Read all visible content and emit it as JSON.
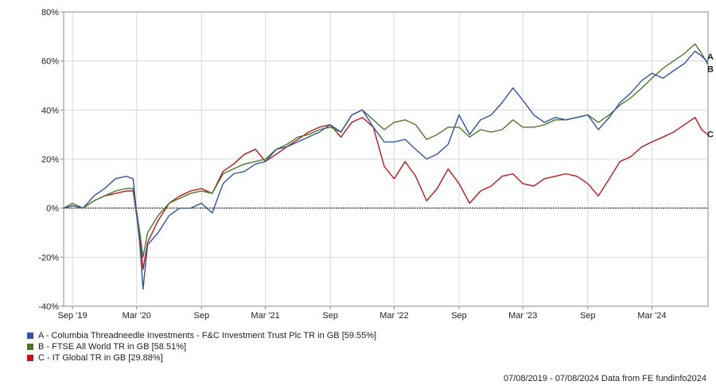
{
  "chart_data": {
    "type": "line",
    "y_axis": {
      "ylim": [
        -40,
        80
      ],
      "ticks": [
        80,
        60,
        40,
        20,
        0,
        -20,
        -40
      ],
      "tick_labels": [
        "80%",
        "60%",
        "40%",
        "20%",
        "0%",
        "-20%",
        "-40%"
      ]
    },
    "x_axis": {
      "xlim": [
        "2019-08-07",
        "2024-08-07"
      ],
      "ticks": [
        "2019-09-01",
        "2020-03-01",
        "2020-09-01",
        "2021-03-01",
        "2021-09-01",
        "2022-03-01",
        "2022-09-01",
        "2023-03-01",
        "2023-09-01",
        "2024-03-01"
      ],
      "tick_labels": [
        "Sep '19",
        "Mar '20",
        "Sep",
        "Mar '21",
        "Sep",
        "Mar '22",
        "Sep",
        "Mar '23",
        "Sep",
        "Mar '24"
      ]
    },
    "grid": true,
    "zero_line": true,
    "series": [
      {
        "key": "A",
        "name": "A - Columbia Threadneedle Investments - F&C Investment Trust Plc TR in GB [59.55%]",
        "end_label": "A",
        "color": "#2f55a4",
        "points": [
          [
            "2019-08-07",
            0
          ],
          [
            "2019-09-01",
            1
          ],
          [
            "2019-10-01",
            0
          ],
          [
            "2019-11-01",
            5
          ],
          [
            "2019-12-01",
            8
          ],
          [
            "2020-01-01",
            12
          ],
          [
            "2020-02-01",
            13
          ],
          [
            "2020-02-20",
            12
          ],
          [
            "2020-03-10",
            -15
          ],
          [
            "2020-03-19",
            -33
          ],
          [
            "2020-04-01",
            -15
          ],
          [
            "2020-05-01",
            -10
          ],
          [
            "2020-06-01",
            -3
          ],
          [
            "2020-07-01",
            0
          ],
          [
            "2020-08-01",
            0
          ],
          [
            "2020-09-01",
            2
          ],
          [
            "2020-10-01",
            -2
          ],
          [
            "2020-11-01",
            10
          ],
          [
            "2020-12-01",
            14
          ],
          [
            "2021-01-01",
            15
          ],
          [
            "2021-02-01",
            18
          ],
          [
            "2021-03-01",
            19
          ],
          [
            "2021-04-01",
            24
          ],
          [
            "2021-05-01",
            25
          ],
          [
            "2021-06-01",
            27
          ],
          [
            "2021-07-01",
            29
          ],
          [
            "2021-08-01",
            31
          ],
          [
            "2021-09-01",
            34
          ],
          [
            "2021-10-01",
            31
          ],
          [
            "2021-11-01",
            38
          ],
          [
            "2021-12-01",
            40
          ],
          [
            "2022-01-01",
            33
          ],
          [
            "2022-02-01",
            27
          ],
          [
            "2022-03-01",
            27
          ],
          [
            "2022-04-01",
            28
          ],
          [
            "2022-05-01",
            24
          ],
          [
            "2022-06-01",
            20
          ],
          [
            "2022-07-01",
            22
          ],
          [
            "2022-08-01",
            26
          ],
          [
            "2022-09-01",
            38
          ],
          [
            "2022-10-01",
            30
          ],
          [
            "2022-11-01",
            36
          ],
          [
            "2022-12-01",
            38
          ],
          [
            "2023-01-01",
            43
          ],
          [
            "2023-02-01",
            49
          ],
          [
            "2023-03-01",
            44
          ],
          [
            "2023-04-01",
            38
          ],
          [
            "2023-05-01",
            35
          ],
          [
            "2023-06-01",
            37
          ],
          [
            "2023-07-01",
            36
          ],
          [
            "2023-08-01",
            37
          ],
          [
            "2023-09-01",
            38
          ],
          [
            "2023-10-01",
            32
          ],
          [
            "2023-11-01",
            37
          ],
          [
            "2023-12-01",
            43
          ],
          [
            "2024-01-01",
            47
          ],
          [
            "2024-02-01",
            52
          ],
          [
            "2024-03-01",
            55
          ],
          [
            "2024-04-01",
            53
          ],
          [
            "2024-05-01",
            56
          ],
          [
            "2024-06-01",
            59
          ],
          [
            "2024-07-01",
            64
          ],
          [
            "2024-07-20",
            62
          ],
          [
            "2024-08-07",
            59.55
          ]
        ]
      },
      {
        "key": "B",
        "name": "B - FTSE All World TR in GB [58.51%]",
        "end_label": "B",
        "color": "#4a7a29",
        "points": [
          [
            "2019-08-07",
            0
          ],
          [
            "2019-09-01",
            2
          ],
          [
            "2019-10-01",
            0
          ],
          [
            "2019-11-01",
            3
          ],
          [
            "2019-12-01",
            5
          ],
          [
            "2020-01-01",
            7
          ],
          [
            "2020-02-01",
            8
          ],
          [
            "2020-02-20",
            8
          ],
          [
            "2020-03-10",
            -10
          ],
          [
            "2020-03-19",
            -20
          ],
          [
            "2020-04-01",
            -10
          ],
          [
            "2020-05-01",
            -3
          ],
          [
            "2020-06-01",
            2
          ],
          [
            "2020-07-01",
            4
          ],
          [
            "2020-08-01",
            6
          ],
          [
            "2020-09-01",
            7
          ],
          [
            "2020-10-01",
            6
          ],
          [
            "2020-11-01",
            14
          ],
          [
            "2020-12-01",
            16
          ],
          [
            "2021-01-01",
            18
          ],
          [
            "2021-02-01",
            19
          ],
          [
            "2021-03-01",
            20
          ],
          [
            "2021-04-01",
            24
          ],
          [
            "2021-05-01",
            26
          ],
          [
            "2021-06-01",
            29
          ],
          [
            "2021-07-01",
            30
          ],
          [
            "2021-08-01",
            32
          ],
          [
            "2021-09-01",
            33
          ],
          [
            "2021-10-01",
            31
          ],
          [
            "2021-11-01",
            38
          ],
          [
            "2021-12-01",
            40
          ],
          [
            "2022-01-01",
            36
          ],
          [
            "2022-02-01",
            32
          ],
          [
            "2022-03-01",
            35
          ],
          [
            "2022-04-01",
            36
          ],
          [
            "2022-05-01",
            34
          ],
          [
            "2022-06-01",
            28
          ],
          [
            "2022-07-01",
            30
          ],
          [
            "2022-08-01",
            33
          ],
          [
            "2022-09-01",
            33
          ],
          [
            "2022-10-01",
            29
          ],
          [
            "2022-11-01",
            32
          ],
          [
            "2022-12-01",
            31
          ],
          [
            "2023-01-01",
            32
          ],
          [
            "2023-02-01",
            36
          ],
          [
            "2023-03-01",
            33
          ],
          [
            "2023-04-01",
            33
          ],
          [
            "2023-05-01",
            34
          ],
          [
            "2023-06-01",
            36
          ],
          [
            "2023-07-01",
            36
          ],
          [
            "2023-08-01",
            37
          ],
          [
            "2023-09-01",
            38
          ],
          [
            "2023-10-01",
            35
          ],
          [
            "2023-11-01",
            38
          ],
          [
            "2023-12-01",
            42
          ],
          [
            "2024-01-01",
            45
          ],
          [
            "2024-02-01",
            49
          ],
          [
            "2024-03-01",
            53
          ],
          [
            "2024-04-01",
            57
          ],
          [
            "2024-05-01",
            60
          ],
          [
            "2024-06-01",
            63
          ],
          [
            "2024-07-01",
            67
          ],
          [
            "2024-07-20",
            63
          ],
          [
            "2024-08-07",
            58.51
          ]
        ]
      },
      {
        "key": "C",
        "name": "C - IT Global TR in GB [29.88%]",
        "end_label": "C",
        "color": "#c0141a",
        "points": [
          [
            "2019-08-07",
            0
          ],
          [
            "2019-09-01",
            1
          ],
          [
            "2019-10-01",
            0
          ],
          [
            "2019-11-01",
            3
          ],
          [
            "2019-12-01",
            5
          ],
          [
            "2020-01-01",
            6
          ],
          [
            "2020-02-01",
            7
          ],
          [
            "2020-02-20",
            7
          ],
          [
            "2020-03-10",
            -12
          ],
          [
            "2020-03-19",
            -25
          ],
          [
            "2020-04-01",
            -14
          ],
          [
            "2020-05-01",
            -5
          ],
          [
            "2020-06-01",
            2
          ],
          [
            "2020-07-01",
            5
          ],
          [
            "2020-08-01",
            7
          ],
          [
            "2020-09-01",
            8
          ],
          [
            "2020-10-01",
            6
          ],
          [
            "2020-11-01",
            15
          ],
          [
            "2020-12-01",
            18
          ],
          [
            "2021-01-01",
            22
          ],
          [
            "2021-02-01",
            24
          ],
          [
            "2021-03-01",
            19
          ],
          [
            "2021-04-01",
            22
          ],
          [
            "2021-05-01",
            25
          ],
          [
            "2021-06-01",
            28
          ],
          [
            "2021-07-01",
            31
          ],
          [
            "2021-08-01",
            33
          ],
          [
            "2021-09-01",
            34
          ],
          [
            "2021-10-01",
            29
          ],
          [
            "2021-11-01",
            35
          ],
          [
            "2021-12-01",
            37
          ],
          [
            "2022-01-01",
            33
          ],
          [
            "2022-02-01",
            17
          ],
          [
            "2022-03-01",
            12
          ],
          [
            "2022-04-01",
            19
          ],
          [
            "2022-05-01",
            13
          ],
          [
            "2022-06-01",
            3
          ],
          [
            "2022-07-01",
            8
          ],
          [
            "2022-08-01",
            16
          ],
          [
            "2022-09-01",
            10
          ],
          [
            "2022-10-01",
            2
          ],
          [
            "2022-11-01",
            7
          ],
          [
            "2022-12-01",
            9
          ],
          [
            "2023-01-01",
            13
          ],
          [
            "2023-02-01",
            14
          ],
          [
            "2023-03-01",
            10
          ],
          [
            "2023-04-01",
            9
          ],
          [
            "2023-05-01",
            12
          ],
          [
            "2023-06-01",
            13
          ],
          [
            "2023-07-01",
            14
          ],
          [
            "2023-08-01",
            13
          ],
          [
            "2023-09-01",
            10
          ],
          [
            "2023-10-01",
            5
          ],
          [
            "2023-11-01",
            12
          ],
          [
            "2023-12-01",
            19
          ],
          [
            "2024-01-01",
            21
          ],
          [
            "2024-02-01",
            25
          ],
          [
            "2024-03-01",
            27
          ],
          [
            "2024-04-01",
            29
          ],
          [
            "2024-05-01",
            31
          ],
          [
            "2024-06-01",
            34
          ],
          [
            "2024-07-01",
            37
          ],
          [
            "2024-07-20",
            32
          ],
          [
            "2024-08-07",
            29.88
          ]
        ]
      }
    ]
  },
  "legend": {
    "items": [
      {
        "key": "A",
        "label": "A - Columbia Threadneedle Investments - F&C Investment Trust Plc TR in GB [59.55%]",
        "color": "#2f55a4"
      },
      {
        "key": "B",
        "label": "B - FTSE All World TR in GB [58.51%]",
        "color": "#4a7a29"
      },
      {
        "key": "C",
        "label": "C - IT Global TR in GB [29.88%]",
        "color": "#c0141a"
      }
    ]
  },
  "footer": {
    "text": "07/08/2019 - 07/08/2024 Data from FE fundinfo2024"
  }
}
